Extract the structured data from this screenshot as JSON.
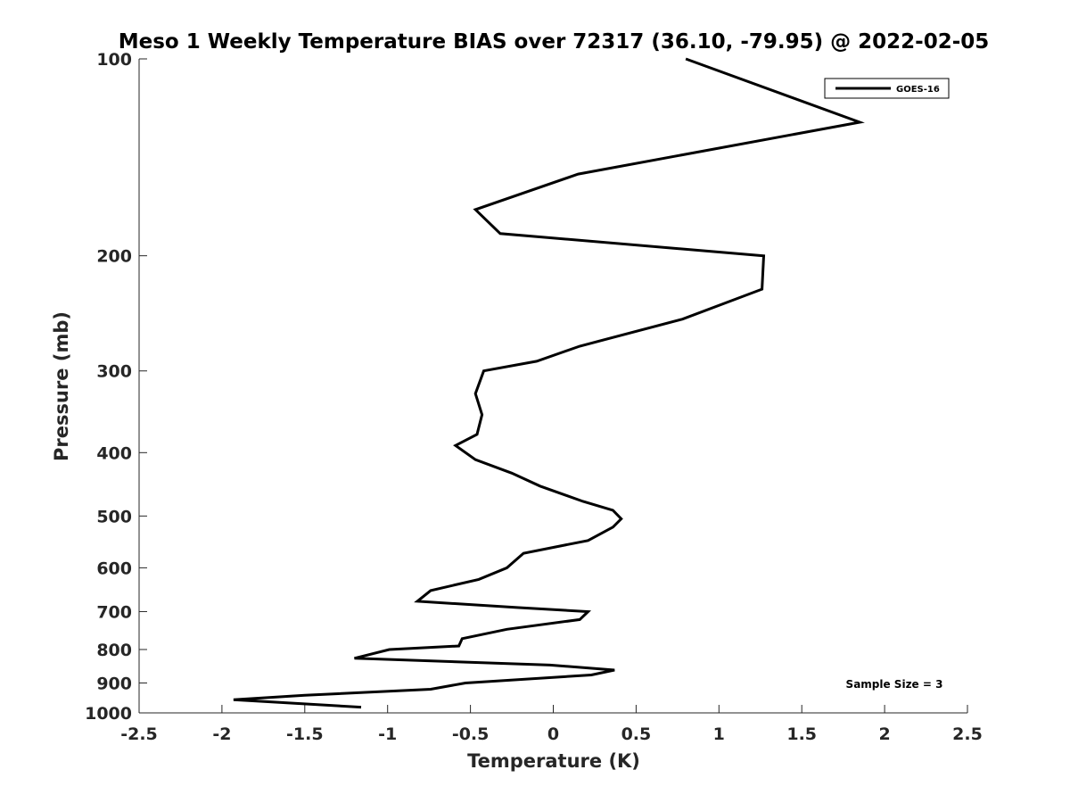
{
  "chart_data": {
    "type": "line",
    "title": "Meso 1 Weekly Temperature BIAS over 72317 (36.10, -79.95) @ 2022-02-05",
    "xlabel": "Temperature (K)",
    "ylabel": "Pressure (mb)",
    "xlim": [
      -2.5,
      2.5
    ],
    "ylim": [
      100,
      1000
    ],
    "yscale": "log",
    "ydirection": "reverse",
    "grid": false,
    "legend_position": "top-right",
    "x_ticks": [
      -2.5,
      -2,
      -1.5,
      -1,
      -0.5,
      0,
      0.5,
      1,
      1.5,
      2,
      2.5
    ],
    "x_tick_labels": [
      "-2.5",
      "-2",
      "-1.5",
      "-1",
      "-0.5",
      "0",
      "0.5",
      "1",
      "1.5",
      "2",
      "2.5"
    ],
    "y_ticks": [
      100,
      200,
      300,
      400,
      500,
      600,
      700,
      800,
      900,
      1000
    ],
    "y_tick_labels": [
      "100",
      "200",
      "300",
      "400",
      "500",
      "600",
      "700",
      "800",
      "900",
      "1000"
    ],
    "annotation": "Sample Size = 3",
    "series": [
      {
        "name": "GOES-16",
        "color": "#000000",
        "points": [
          [
            0.8,
            100
          ],
          [
            1.85,
            125
          ],
          [
            0.15,
            150
          ],
          [
            -0.47,
            170
          ],
          [
            -0.32,
            185
          ],
          [
            1.27,
            200
          ],
          [
            1.26,
            225
          ],
          [
            0.78,
            250
          ],
          [
            0.16,
            275
          ],
          [
            -0.1,
            290
          ],
          [
            -0.42,
            300
          ],
          [
            -0.47,
            325
          ],
          [
            -0.43,
            350
          ],
          [
            -0.46,
            375
          ],
          [
            -0.59,
            390
          ],
          [
            -0.47,
            410
          ],
          [
            -0.25,
            430
          ],
          [
            -0.08,
            450
          ],
          [
            0.18,
            475
          ],
          [
            0.36,
            490
          ],
          [
            0.41,
            505
          ],
          [
            0.36,
            520
          ],
          [
            0.21,
            545
          ],
          [
            -0.18,
            570
          ],
          [
            -0.28,
            600
          ],
          [
            -0.45,
            625
          ],
          [
            -0.74,
            650
          ],
          [
            -0.82,
            675
          ],
          [
            -0.22,
            690
          ],
          [
            0.21,
            700
          ],
          [
            0.16,
            720
          ],
          [
            -0.28,
            745
          ],
          [
            -0.55,
            770
          ],
          [
            -0.57,
            790
          ],
          [
            -0.99,
            800
          ],
          [
            -1.2,
            825
          ],
          [
            -0.02,
            845
          ],
          [
            0.37,
            860
          ],
          [
            0.23,
            875
          ],
          [
            -0.53,
            900
          ],
          [
            -0.74,
            920
          ],
          [
            -1.5,
            940
          ],
          [
            -1.93,
            955
          ],
          [
            -1.16,
            980
          ]
        ]
      }
    ]
  }
}
